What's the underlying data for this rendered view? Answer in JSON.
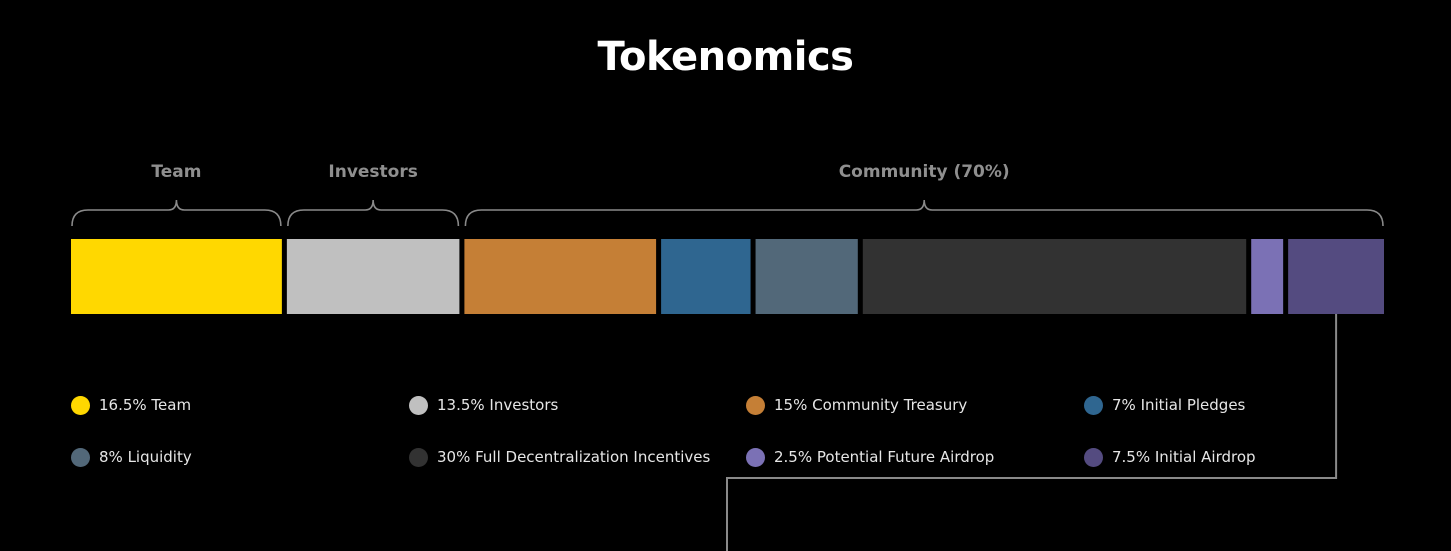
{
  "page": {
    "title": "Tokenomics"
  },
  "chart_data": {
    "type": "bar",
    "orientation": "horizontal-stacked",
    "title": "Tokenomics",
    "unit": "%",
    "total": 100,
    "segments": [
      {
        "name": "Team",
        "value": 16.5,
        "color": "#ffd800",
        "legend": "16.5% Team"
      },
      {
        "name": "Investors",
        "value": 13.5,
        "color": "#c0c0c0",
        "legend": "13.5% Investors"
      },
      {
        "name": "Community Treasury",
        "value": 15,
        "color": "#c57f36",
        "legend": "15% Community Treasury"
      },
      {
        "name": "Initial Pledges",
        "value": 7,
        "color": "#2f6690",
        "legend": "7% Initial Pledges"
      },
      {
        "name": "Liquidity",
        "value": 8,
        "color": "#526879",
        "legend": "8% Liquidity"
      },
      {
        "name": "Full Decentralization Incentives",
        "value": 30,
        "color": "#323232",
        "legend": "30% Full Decentralization Incentives"
      },
      {
        "name": "Potential Future Airdrop",
        "value": 2.5,
        "color": "#7b71b5",
        "legend": "2.5% Potential Future Airdrop"
      },
      {
        "name": "Initial Airdrop",
        "value": 7.5,
        "color": "#544b80",
        "legend": "7.5% Initial Airdrop"
      }
    ],
    "groups": [
      {
        "label": "Team",
        "from": 0,
        "to": 0
      },
      {
        "label": "Investors",
        "from": 1,
        "to": 1
      },
      {
        "label": "Community (70%)",
        "from": 2,
        "to": 7
      }
    ],
    "legend_order": [
      0,
      1,
      2,
      3,
      4,
      5,
      6,
      7
    ],
    "legend_placement": "bottom",
    "grid": false
  },
  "colors": {
    "background": "#000000",
    "bracket": "#8a8a8a",
    "group_label": "#8f8f8f",
    "legend_text": "#e6e6e6",
    "connector": "#8a8a8a"
  }
}
